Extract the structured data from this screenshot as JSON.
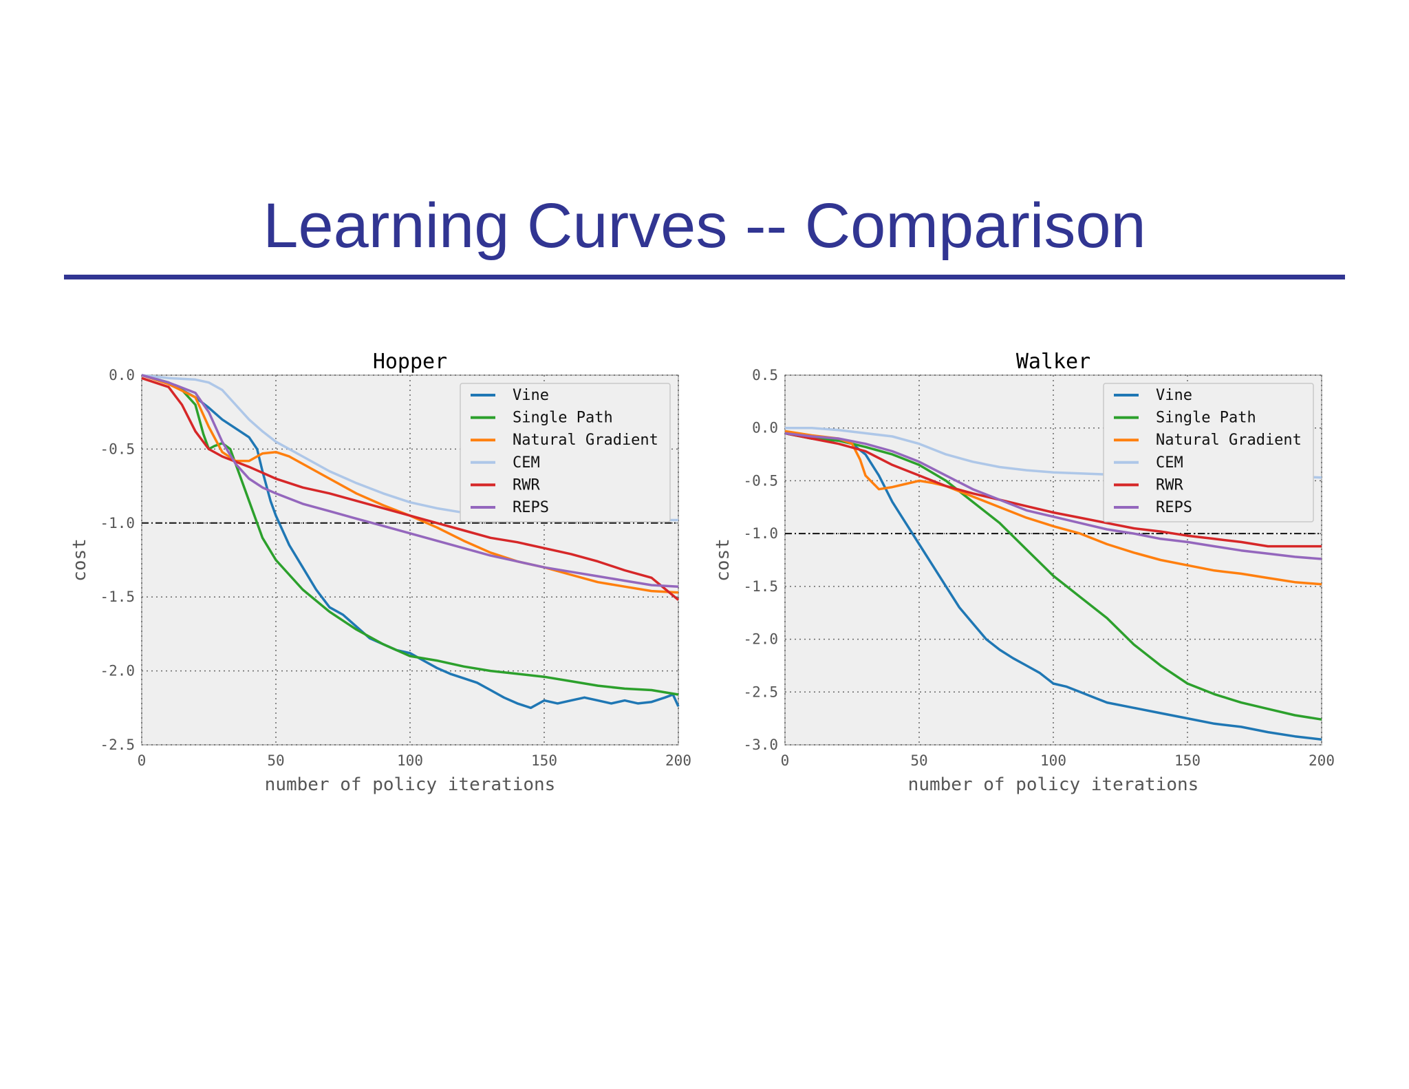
{
  "slide": {
    "title": "Learning Curves -- Comparison"
  },
  "chart_data": [
    {
      "type": "line",
      "title": "Hopper",
      "xlabel": "number of policy iterations",
      "ylabel": "cost",
      "xlim": [
        0,
        200
      ],
      "ylim": [
        -2.5,
        0.0
      ],
      "xticks": [
        "0",
        "50",
        "100",
        "150",
        "200"
      ],
      "yticks": [
        "0.0",
        "-0.5",
        "-1.0",
        "-1.5",
        "-2.0",
        "-2.5"
      ],
      "grid": true,
      "legend_position": "top-right",
      "reference_line": -1.0,
      "series": [
        {
          "name": "Vine",
          "color": "#1f77b4",
          "x": [
            0,
            10,
            15,
            20,
            25,
            30,
            35,
            40,
            43,
            45,
            48,
            50,
            55,
            60,
            65,
            70,
            75,
            80,
            85,
            90,
            95,
            100,
            105,
            110,
            115,
            120,
            125,
            130,
            135,
            140,
            145,
            150,
            155,
            160,
            165,
            170,
            175,
            180,
            185,
            190,
            195,
            198,
            200
          ],
          "y": [
            0,
            -0.05,
            -0.1,
            -0.15,
            -0.22,
            -0.3,
            -0.36,
            -0.42,
            -0.5,
            -0.65,
            -0.85,
            -0.95,
            -1.15,
            -1.3,
            -1.45,
            -1.57,
            -1.62,
            -1.7,
            -1.78,
            -1.82,
            -1.86,
            -1.88,
            -1.93,
            -1.98,
            -2.02,
            -2.05,
            -2.08,
            -2.13,
            -2.18,
            -2.22,
            -2.25,
            -2.2,
            -2.22,
            -2.2,
            -2.18,
            -2.2,
            -2.22,
            -2.2,
            -2.22,
            -2.21,
            -2.18,
            -2.16,
            -2.24
          ]
        },
        {
          "name": "Single Path",
          "color": "#2ca02c",
          "x": [
            0,
            10,
            15,
            20,
            23,
            25,
            27,
            30,
            33,
            35,
            40,
            45,
            50,
            55,
            60,
            70,
            80,
            90,
            100,
            110,
            120,
            130,
            140,
            150,
            160,
            170,
            180,
            190,
            200
          ],
          "y": [
            0,
            -0.05,
            -0.1,
            -0.2,
            -0.4,
            -0.5,
            -0.48,
            -0.46,
            -0.5,
            -0.6,
            -0.85,
            -1.1,
            -1.25,
            -1.35,
            -1.45,
            -1.6,
            -1.72,
            -1.82,
            -1.9,
            -1.93,
            -1.97,
            -2.0,
            -2.02,
            -2.04,
            -2.07,
            -2.1,
            -2.12,
            -2.13,
            -2.16
          ]
        },
        {
          "name": "Natural Gradient",
          "color": "#ff7f0e",
          "x": [
            0,
            10,
            20,
            25,
            30,
            35,
            40,
            45,
            50,
            55,
            60,
            70,
            80,
            90,
            100,
            110,
            120,
            130,
            140,
            150,
            160,
            170,
            180,
            190,
            200
          ],
          "y": [
            0,
            -0.06,
            -0.15,
            -0.35,
            -0.52,
            -0.58,
            -0.58,
            -0.53,
            -0.52,
            -0.55,
            -0.6,
            -0.7,
            -0.8,
            -0.88,
            -0.95,
            -1.03,
            -1.12,
            -1.2,
            -1.26,
            -1.3,
            -1.35,
            -1.4,
            -1.43,
            -1.46,
            -1.47
          ]
        },
        {
          "name": "CEM",
          "color": "#aec7e8",
          "x": [
            0,
            10,
            20,
            25,
            30,
            35,
            40,
            45,
            50,
            60,
            70,
            80,
            90,
            100,
            110,
            120,
            130,
            140,
            150,
            160,
            170,
            180,
            190,
            200
          ],
          "y": [
            0,
            -0.02,
            -0.03,
            -0.05,
            -0.1,
            -0.2,
            -0.3,
            -0.38,
            -0.45,
            -0.55,
            -0.65,
            -0.73,
            -0.8,
            -0.86,
            -0.9,
            -0.93,
            -0.95,
            -0.96,
            -0.97,
            -0.98,
            -0.98,
            -0.98,
            -0.98,
            -0.98
          ]
        },
        {
          "name": "RWR",
          "color": "#d62728",
          "x": [
            0,
            10,
            15,
            20,
            25,
            30,
            40,
            50,
            60,
            70,
            80,
            90,
            100,
            110,
            120,
            130,
            140,
            150,
            160,
            170,
            180,
            190,
            200
          ],
          "y": [
            -0.02,
            -0.08,
            -0.2,
            -0.38,
            -0.5,
            -0.55,
            -0.62,
            -0.7,
            -0.76,
            -0.8,
            -0.85,
            -0.9,
            -0.95,
            -1.0,
            -1.05,
            -1.1,
            -1.13,
            -1.17,
            -1.21,
            -1.26,
            -1.32,
            -1.37,
            -1.52
          ]
        },
        {
          "name": "REPS",
          "color": "#9467bd",
          "x": [
            0,
            10,
            20,
            25,
            30,
            35,
            40,
            45,
            50,
            60,
            70,
            80,
            90,
            100,
            110,
            120,
            130,
            140,
            150,
            160,
            170,
            180,
            190,
            200
          ],
          "y": [
            0,
            -0.05,
            -0.12,
            -0.25,
            -0.45,
            -0.6,
            -0.7,
            -0.76,
            -0.8,
            -0.87,
            -0.92,
            -0.97,
            -1.02,
            -1.07,
            -1.12,
            -1.17,
            -1.22,
            -1.26,
            -1.3,
            -1.33,
            -1.36,
            -1.39,
            -1.42,
            -1.43
          ]
        }
      ]
    },
    {
      "type": "line",
      "title": "Walker",
      "xlabel": "number of policy iterations",
      "ylabel": "cost",
      "xlim": [
        0,
        200
      ],
      "ylim": [
        -3.0,
        0.5
      ],
      "xticks": [
        "0",
        "50",
        "100",
        "150",
        "200"
      ],
      "yticks": [
        "0.5",
        "0.0",
        "-0.5",
        "-1.0",
        "-1.5",
        "-2.0",
        "-2.5",
        "-3.0"
      ],
      "grid": true,
      "legend_position": "top-right",
      "reference_line": -1.0,
      "series": [
        {
          "name": "Vine",
          "color": "#1f77b4",
          "x": [
            0,
            10,
            20,
            25,
            30,
            35,
            40,
            45,
            50,
            55,
            60,
            65,
            70,
            75,
            80,
            85,
            90,
            95,
            100,
            105,
            110,
            115,
            120,
            130,
            140,
            150,
            160,
            170,
            180,
            190,
            200
          ],
          "y": [
            -0.05,
            -0.1,
            -0.12,
            -0.15,
            -0.25,
            -0.45,
            -0.7,
            -0.9,
            -1.1,
            -1.3,
            -1.5,
            -1.7,
            -1.85,
            -2.0,
            -2.1,
            -2.18,
            -2.25,
            -2.32,
            -2.42,
            -2.45,
            -2.5,
            -2.55,
            -2.6,
            -2.65,
            -2.7,
            -2.75,
            -2.8,
            -2.83,
            -2.88,
            -2.92,
            -2.95
          ]
        },
        {
          "name": "Single Path",
          "color": "#2ca02c",
          "x": [
            0,
            10,
            20,
            30,
            40,
            50,
            60,
            70,
            80,
            90,
            100,
            110,
            120,
            130,
            140,
            150,
            160,
            170,
            180,
            190,
            200
          ],
          "y": [
            -0.05,
            -0.1,
            -0.12,
            -0.18,
            -0.25,
            -0.35,
            -0.5,
            -0.7,
            -0.9,
            -1.15,
            -1.4,
            -1.6,
            -1.8,
            -2.05,
            -2.25,
            -2.42,
            -2.52,
            -2.6,
            -2.66,
            -2.72,
            -2.76
          ]
        },
        {
          "name": "Natural Gradient",
          "color": "#ff7f0e",
          "x": [
            0,
            10,
            20,
            25,
            28,
            30,
            35,
            40,
            45,
            50,
            55,
            60,
            70,
            80,
            90,
            100,
            110,
            120,
            130,
            140,
            150,
            160,
            170,
            180,
            190,
            200
          ],
          "y": [
            -0.03,
            -0.07,
            -0.1,
            -0.15,
            -0.3,
            -0.45,
            -0.58,
            -0.56,
            -0.53,
            -0.5,
            -0.52,
            -0.55,
            -0.65,
            -0.75,
            -0.85,
            -0.93,
            -1.0,
            -1.1,
            -1.18,
            -1.25,
            -1.3,
            -1.35,
            -1.38,
            -1.42,
            -1.46,
            -1.48
          ]
        },
        {
          "name": "CEM",
          "color": "#aec7e8",
          "x": [
            0,
            10,
            20,
            30,
            40,
            50,
            60,
            70,
            80,
            90,
            100,
            110,
            120,
            130,
            140,
            150,
            160,
            170,
            180,
            190,
            200
          ],
          "y": [
            0.0,
            0.0,
            -0.02,
            -0.05,
            -0.08,
            -0.15,
            -0.25,
            -0.32,
            -0.37,
            -0.4,
            -0.42,
            -0.43,
            -0.44,
            -0.44,
            -0.45,
            -0.45,
            -0.45,
            -0.46,
            -0.46,
            -0.46,
            -0.47
          ]
        },
        {
          "name": "RWR",
          "color": "#d62728",
          "x": [
            0,
            10,
            20,
            30,
            40,
            50,
            60,
            70,
            80,
            90,
            100,
            110,
            120,
            130,
            140,
            150,
            160,
            170,
            180,
            190,
            200
          ],
          "y": [
            -0.05,
            -0.1,
            -0.15,
            -0.22,
            -0.35,
            -0.45,
            -0.55,
            -0.62,
            -0.68,
            -0.74,
            -0.8,
            -0.85,
            -0.9,
            -0.95,
            -0.98,
            -1.02,
            -1.05,
            -1.08,
            -1.12,
            -1.12,
            -1.12
          ]
        },
        {
          "name": "REPS",
          "color": "#9467bd",
          "x": [
            0,
            10,
            20,
            30,
            40,
            50,
            60,
            70,
            80,
            90,
            100,
            110,
            120,
            130,
            140,
            150,
            160,
            170,
            180,
            190,
            200
          ],
          "y": [
            -0.05,
            -0.08,
            -0.1,
            -0.15,
            -0.22,
            -0.32,
            -0.45,
            -0.58,
            -0.68,
            -0.78,
            -0.84,
            -0.9,
            -0.96,
            -1.0,
            -1.05,
            -1.08,
            -1.12,
            -1.16,
            -1.19,
            -1.22,
            -1.24
          ]
        }
      ]
    }
  ]
}
